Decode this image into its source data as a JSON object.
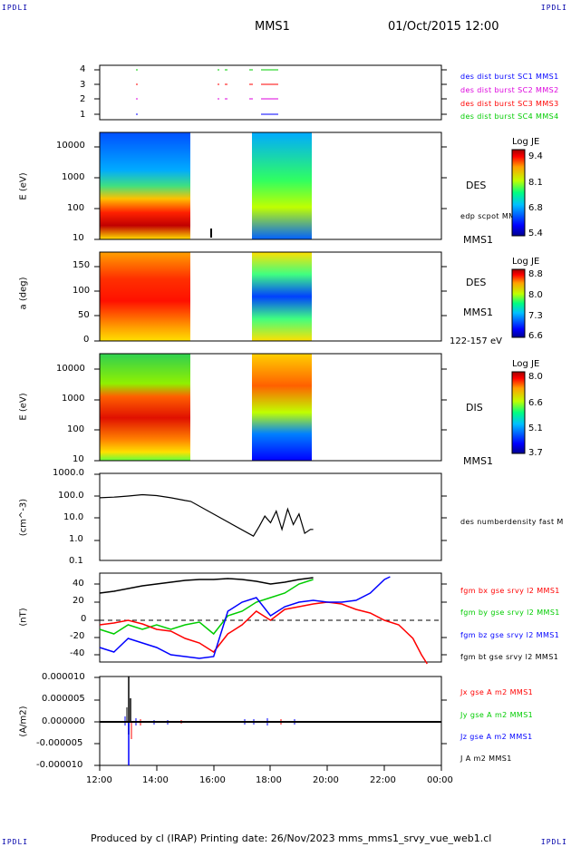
{
  "corners": {
    "tl": "IPDLI",
    "tr": "IPDLI",
    "bl": "IPDLI",
    "br": "IPDLI"
  },
  "header": {
    "title": "MMS1",
    "datetime": "01/Oct/2015 12:00"
  },
  "footer": {
    "text": "Produced by cl (IRAP)   Printing date: 26/Nov/2023   mms_mms1_srvy_vue_web1.cl"
  },
  "colors": {
    "blue": "#0000ff",
    "magenta": "#dd00dd",
    "red": "#ff0000",
    "green": "#00cc00",
    "black": "#000000"
  },
  "chart_data": [
    {
      "type": "line",
      "panel": "burst",
      "yticks": [
        "4",
        "3",
        "2",
        "1"
      ],
      "ylim": [
        0.5,
        4.5
      ],
      "legend": [
        {
          "label": "des dist burst SC1 MMS1",
          "color": "#0000ff"
        },
        {
          "label": "des dist burst SC2 MMS2",
          "color": "#dd00dd"
        },
        {
          "label": "des dist burst SC3 MMS3",
          "color": "#ff0000"
        },
        {
          "label": "des dist burst SC4 MMS4",
          "color": "#00cc00"
        }
      ]
    },
    {
      "type": "heatmap",
      "panel": "des-energy",
      "ylabel": "E (eV)",
      "yticks": [
        "10000",
        "1000",
        "100",
        "10"
      ],
      "ylim": [
        10,
        30000
      ],
      "scale": "log",
      "label": "DES",
      "overlay": "edp scpot MMS1",
      "spacecraft": "MMS1",
      "colorbar": {
        "title": "Log JE",
        "ticks": [
          "9.4",
          "8.1",
          "6.8",
          "5.4"
        ]
      }
    },
    {
      "type": "heatmap",
      "panel": "des-pitch",
      "ylabel": "a (deg)",
      "yticks": [
        "150",
        "100",
        "50",
        "0"
      ],
      "ylim": [
        0,
        180
      ],
      "label": "DES",
      "spacecraft": "MMS1",
      "energy_range": "122-157 eV",
      "colorbar": {
        "title": "Log JE",
        "ticks": [
          "8.8",
          "8.0",
          "7.3",
          "6.6"
        ]
      }
    },
    {
      "type": "heatmap",
      "panel": "dis-energy",
      "ylabel": "E (eV)",
      "yticks": [
        "10000",
        "1000",
        "100",
        "10"
      ],
      "ylim": [
        10,
        30000
      ],
      "scale": "log",
      "label": "DIS",
      "spacecraft": "MMS1",
      "colorbar": {
        "title": "Log JE",
        "ticks": [
          "8.0",
          "6.6",
          "5.1",
          "3.7"
        ]
      }
    },
    {
      "type": "line",
      "panel": "density",
      "ylabel": "(cm^-3)",
      "yticks": [
        "1000.0",
        "100.0",
        "10.0",
        "1.0",
        "0.1"
      ],
      "ylim": [
        0.1,
        1000
      ],
      "scale": "log",
      "series": [
        {
          "name": "des numberdensity fast M",
          "color": "#000000",
          "x": [
            12.0,
            12.5,
            13.0,
            13.5,
            14.0,
            14.5,
            15.0,
            15.2,
            17.4,
            17.6,
            17.8,
            18.0,
            18.2,
            18.4,
            18.6,
            18.8,
            19.0,
            19.2,
            19.4,
            19.5
          ],
          "y": [
            80,
            85,
            95,
            110,
            100,
            80,
            60,
            55,
            1.5,
            4,
            12,
            6,
            20,
            3,
            25,
            5,
            15,
            2,
            3,
            3
          ]
        }
      ]
    },
    {
      "type": "line",
      "panel": "magnetic-field",
      "ylabel": "(nT)",
      "yticks": [
        "40",
        "20",
        "0",
        "-20",
        "-40"
      ],
      "ylim": [
        -50,
        50
      ],
      "series": [
        {
          "name": "fgm bx gse srvy l2 MMS1",
          "color": "#ff0000",
          "x": [
            12.0,
            12.5,
            13.0,
            13.5,
            14.0,
            14.5,
            15.0,
            15.5,
            16.0,
            16.5,
            17.0,
            17.5,
            18.0,
            18.5,
            19.0,
            19.5,
            20.0,
            20.5,
            21.0,
            21.5,
            22.0,
            22.5,
            23.0,
            23.3,
            23.5
          ],
          "y": [
            -5,
            -3,
            0,
            -4,
            -10,
            -12,
            -20,
            -25,
            -35,
            -15,
            -5,
            10,
            0,
            12,
            15,
            18,
            20,
            18,
            12,
            8,
            0,
            -5,
            -20,
            -38,
            -48
          ]
        },
        {
          "name": "fgm by gse srvy l2 MMS1",
          "color": "#00cc00",
          "x": [
            12.0,
            12.5,
            13.0,
            13.5,
            14.0,
            14.5,
            15.0,
            15.5,
            16.0,
            16.5,
            17.0,
            17.5,
            18.0,
            18.5,
            19.0,
            19.5
          ],
          "y": [
            -10,
            -15,
            -5,
            -10,
            -5,
            -10,
            -5,
            -2,
            -15,
            5,
            10,
            20,
            25,
            30,
            40,
            45
          ]
        },
        {
          "name": "fgm bz gse srvy l2 MMS1",
          "color": "#0000ff",
          "x": [
            12.0,
            12.5,
            13.0,
            13.5,
            14.0,
            14.5,
            15.0,
            15.5,
            16.0,
            16.5,
            17.0,
            17.5,
            18.0,
            18.5,
            19.0,
            19.5,
            20.0,
            20.5,
            21.0,
            21.5,
            22.0,
            22.2
          ],
          "y": [
            -30,
            -35,
            -20,
            -25,
            -30,
            -38,
            -40,
            -42,
            -40,
            10,
            20,
            25,
            5,
            15,
            20,
            22,
            20,
            20,
            22,
            30,
            45,
            48
          ]
        },
        {
          "name": "fgm bt gse srvy l2 MMS1",
          "color": "#000000",
          "x": [
            12.0,
            12.5,
            13.0,
            13.5,
            14.0,
            14.5,
            15.0,
            15.5,
            16.0,
            16.5,
            17.0,
            17.5,
            18.0,
            18.5,
            19.0,
            19.5
          ],
          "y": [
            30,
            32,
            35,
            38,
            40,
            42,
            44,
            45,
            45,
            46,
            45,
            43,
            40,
            42,
            45,
            47
          ]
        }
      ]
    },
    {
      "type": "line",
      "panel": "current-density",
      "ylabel": "(A/m2)",
      "yticks": [
        "0.000010",
        "0.000005",
        "0.000000",
        "-0.000005",
        "-0.000010"
      ],
      "ylim": [
        -1e-05,
        1e-05
      ],
      "xticks": [
        "12:00",
        "14:00",
        "16:00",
        "18:00",
        "20:00",
        "22:00",
        "00:00"
      ],
      "xlim": [
        12,
        24
      ],
      "series": [
        {
          "name": "Jx gse A m2 MMS1",
          "color": "#ff0000"
        },
        {
          "name": "Jy gse A m2 MMS1",
          "color": "#00cc00"
        },
        {
          "name": "Jz gse A m2 MMS1",
          "color": "#0000ff"
        },
        {
          "name": "J A m2 MMS1",
          "color": "#000000"
        }
      ]
    }
  ]
}
